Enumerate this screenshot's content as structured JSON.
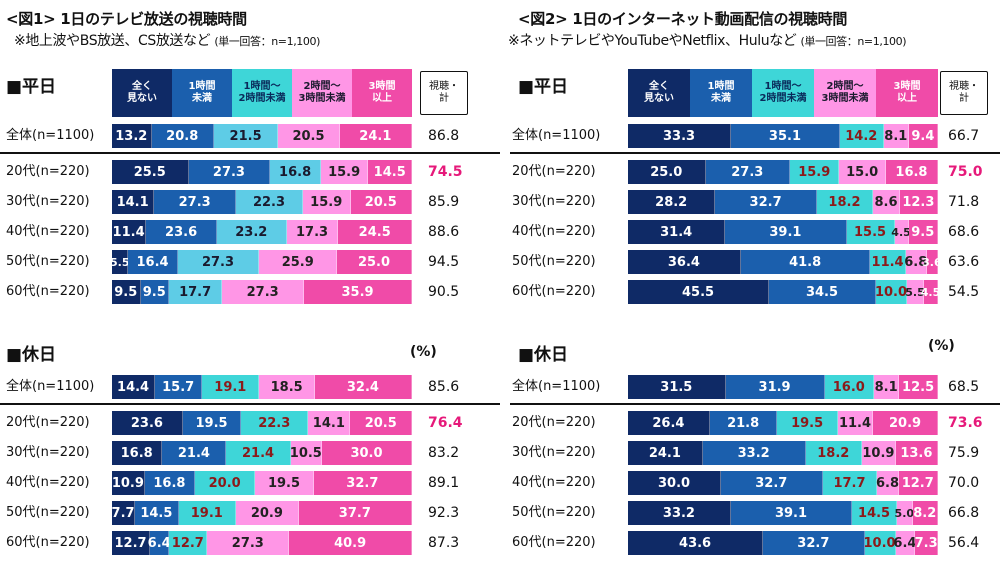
{
  "unit": "(%)",
  "legend_total": "視聴・\n計",
  "categories": [
    "全く\n見ない",
    "1時間\n未満",
    "1時間～\n2時間未満",
    "2時間～\n3時間未満",
    "3時間\n以上"
  ],
  "colors": [
    "#0f2a66",
    "#1b5fad",
    "#3ed6d8",
    "#ff96e6",
    "#f04ba8"
  ],
  "highlight_color": "#e6197a",
  "chart_data": [
    {
      "type": "bar",
      "stacked": true,
      "orientation": "horizontal",
      "title": "<図1> 1日のテレビ放送の視聴時間",
      "subtitle": "※地上波やBS放送、CS放送など",
      "note": "(単一回答：n=1,100)",
      "xlim": [
        0,
        100
      ],
      "panels": [
        {
          "name": "■平日",
          "rows": [
            {
              "label": "全体(n=1100)",
              "values": [
                13.2,
                20.8,
                21.5,
                20.5,
                24.1
              ],
              "total": "86.8",
              "highlight": false
            },
            {
              "label": "20代(n=220)",
              "values": [
                25.5,
                27.3,
                16.8,
                15.9,
                14.5
              ],
              "total": "74.5",
              "highlight": true
            },
            {
              "label": "30代(n=220)",
              "values": [
                14.1,
                27.3,
                22.3,
                15.9,
                20.5
              ],
              "total": "85.9",
              "highlight": false
            },
            {
              "label": "40代(n=220)",
              "values": [
                11.4,
                23.6,
                23.2,
                17.3,
                24.5
              ],
              "total": "88.6",
              "highlight": false
            },
            {
              "label": "50代(n=220)",
              "values": [
                5.5,
                16.4,
                27.3,
                25.9,
                25.0
              ],
              "total": "94.5",
              "highlight": false
            },
            {
              "label": "60代(n=220)",
              "values": [
                9.5,
                9.5,
                17.7,
                27.3,
                35.9
              ],
              "total": "90.5",
              "highlight": false
            }
          ]
        },
        {
          "name": "■休日",
          "rows": [
            {
              "label": "全体(n=1100)",
              "values": [
                14.4,
                15.7,
                19.1,
                18.5,
                32.4
              ],
              "total": "85.6",
              "highlight": false
            },
            {
              "label": "20代(n=220)",
              "values": [
                23.6,
                19.5,
                22.3,
                14.1,
                20.5
              ],
              "total": "76.4",
              "highlight": true
            },
            {
              "label": "30代(n=220)",
              "values": [
                16.8,
                21.4,
                21.4,
                10.5,
                30.0
              ],
              "total": "83.2",
              "highlight": false
            },
            {
              "label": "40代(n=220)",
              "values": [
                10.9,
                16.8,
                20.0,
                19.5,
                32.7
              ],
              "total": "89.1",
              "highlight": false
            },
            {
              "label": "50代(n=220)",
              "values": [
                7.7,
                14.5,
                19.1,
                20.9,
                37.7
              ],
              "total": "92.3",
              "highlight": false
            },
            {
              "label": "60代(n=220)",
              "values": [
                12.7,
                6.4,
                12.7,
                27.3,
                40.9
              ],
              "total": "87.3",
              "highlight": false
            }
          ]
        }
      ]
    },
    {
      "type": "bar",
      "stacked": true,
      "orientation": "horizontal",
      "title": "<図2> 1日のインターネット動画配信の視聴時間",
      "subtitle": "※ネットテレビやYouTubeやNetflix、Huluなど",
      "note": "(単一回答：n=1,100)",
      "xlim": [
        0,
        100
      ],
      "panels": [
        {
          "name": "■平日",
          "rows": [
            {
              "label": "全体(n=1100)",
              "values": [
                33.3,
                35.1,
                14.2,
                8.1,
                9.4
              ],
              "total": "66.7",
              "highlight": false
            },
            {
              "label": "20代(n=220)",
              "values": [
                25.0,
                27.3,
                15.9,
                15.0,
                16.8
              ],
              "total": "75.0",
              "highlight": true
            },
            {
              "label": "30代(n=220)",
              "values": [
                28.2,
                32.7,
                18.2,
                8.6,
                12.3
              ],
              "total": "71.8",
              "highlight": false
            },
            {
              "label": "40代(n=220)",
              "values": [
                31.4,
                39.1,
                15.5,
                4.5,
                9.5
              ],
              "total": "68.6",
              "highlight": false
            },
            {
              "label": "50代(n=220)",
              "values": [
                36.4,
                41.8,
                11.4,
                6.8,
                3.6
              ],
              "total": "63.6",
              "highlight": false
            },
            {
              "label": "60代(n=220)",
              "values": [
                45.5,
                34.5,
                10.0,
                5.5,
                4.5
              ],
              "total": "54.5",
              "highlight": false
            }
          ]
        },
        {
          "name": "■休日",
          "rows": [
            {
              "label": "全体(n=1100)",
              "values": [
                31.5,
                31.9,
                16.0,
                8.1,
                12.5
              ],
              "total": "68.5",
              "highlight": false
            },
            {
              "label": "20代(n=220)",
              "values": [
                26.4,
                21.8,
                19.5,
                11.4,
                20.9
              ],
              "total": "73.6",
              "highlight": true
            },
            {
              "label": "30代(n=220)",
              "values": [
                24.1,
                33.2,
                18.2,
                10.9,
                13.6
              ],
              "total": "75.9",
              "highlight": false
            },
            {
              "label": "40代(n=220)",
              "values": [
                30.0,
                32.7,
                17.7,
                6.8,
                12.7
              ],
              "total": "70.0",
              "highlight": false
            },
            {
              "label": "50代(n=220)",
              "values": [
                33.2,
                39.1,
                14.5,
                5.0,
                8.2
              ],
              "total": "66.8",
              "highlight": false
            },
            {
              "label": "60代(n=220)",
              "values": [
                43.6,
                32.7,
                10.0,
                6.4,
                7.3
              ],
              "total": "56.4",
              "highlight": false
            }
          ]
        }
      ]
    }
  ]
}
